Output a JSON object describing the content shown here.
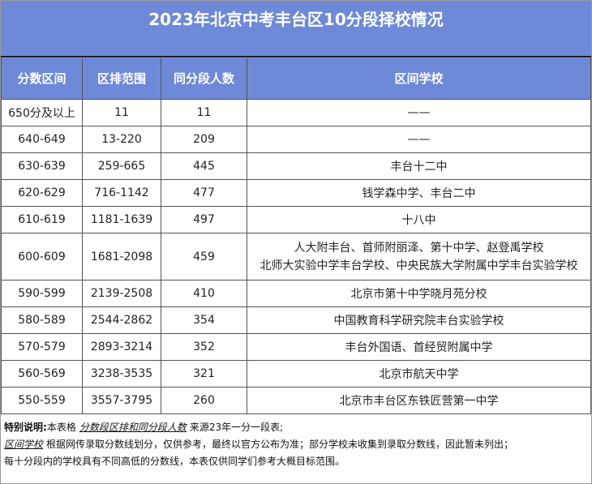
{
  "title": "2023年北京中考丰台区10分段择校情况",
  "table": {
    "headers": [
      "分数区间",
      "区排范围",
      "同分段人数",
      "区间学校"
    ],
    "rows": [
      [
        "650分及以上",
        "11",
        "11",
        "——"
      ],
      [
        "640-649",
        "13-220",
        "209",
        "——"
      ],
      [
        "630-639",
        "259-665",
        "445",
        "丰台十二中"
      ],
      [
        "620-629",
        "716-1142",
        "477",
        "钱学森中学、丰台二中"
      ],
      [
        "610-619",
        "1181-1639",
        "497",
        "十八中"
      ],
      [
        "600-609",
        "1681-2098",
        "459",
        [
          "人大附丰台、首师附丽泽、第十中学、赵登禹学校",
          "北师大实验中学丰台学校、中央民族大学附属中学丰台实验学校"
        ]
      ],
      [
        "590-599",
        "2139-2508",
        "410",
        "北京市第十中学晓月苑分校"
      ],
      [
        "580-589",
        "2544-2862",
        "354",
        "中国教育科学研究院丰台实验学校"
      ],
      [
        "570-579",
        "2893-3214",
        "352",
        "丰台外国语、首经贸附属中学"
      ],
      [
        "560-569",
        "3238-3535",
        "321",
        "北京市航天中学"
      ],
      [
        "550-559",
        "3557-3795",
        "260",
        "北京市丰台区东铁匠营第一中学"
      ]
    ]
  },
  "notes": [
    [
      "特别说明:",
      "本表格",
      "分数段区排和同分段人数",
      "来源23年一分一段表;"
    ],
    [
      "区间学校",
      "根据网传录取分数线划分，仅供参考，最终以官方公布为准；部分学校未收集到录取分数线，因此暂未列出；"
    ],
    [
      "每十分段内的学校具有不同高低的分数线，本表仅供同学们参考大概目标范围。"
    ]
  ]
}
